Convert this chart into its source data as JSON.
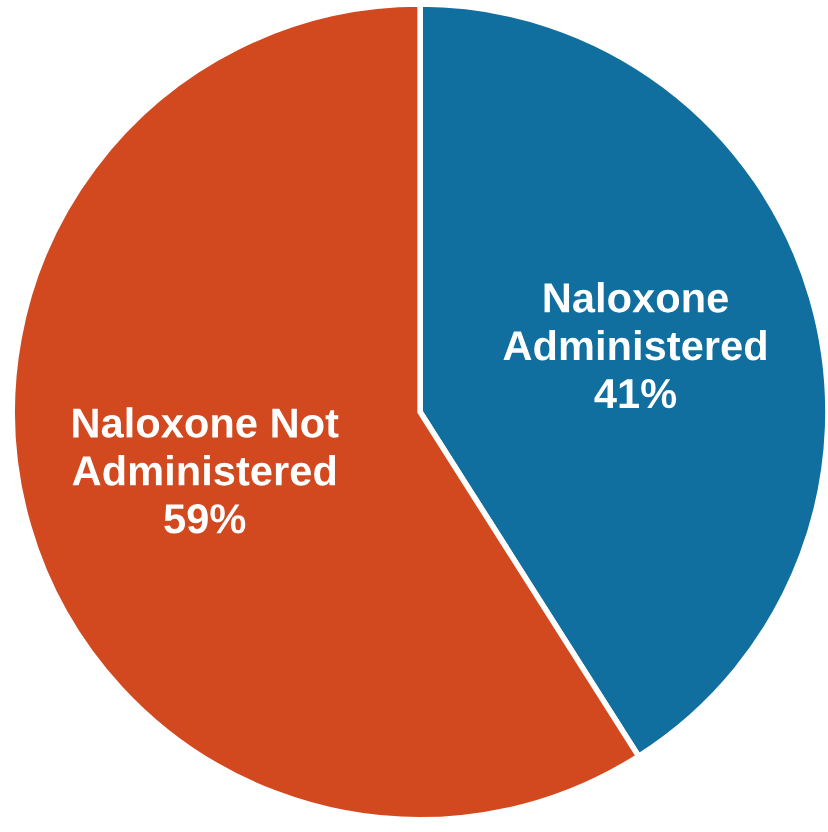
{
  "chart_data": {
    "type": "pie",
    "categories": [
      "Naloxone\nAdministered",
      "Naloxone Not\nAdministered"
    ],
    "values": [
      41,
      59
    ],
    "colors": [
      "#106f9e",
      "#d2491f"
    ],
    "value_labels": [
      "41%",
      "59%"
    ],
    "legend": false
  }
}
